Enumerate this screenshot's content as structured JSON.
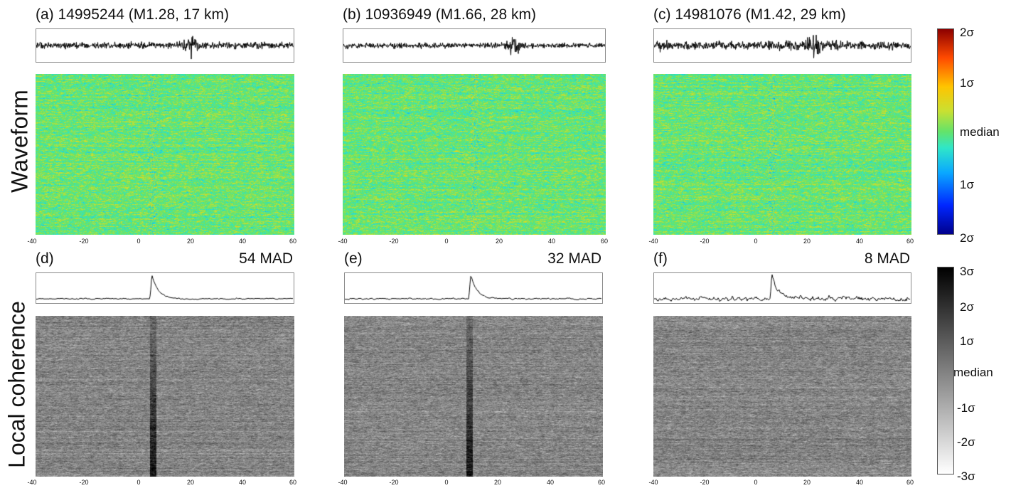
{
  "row_labels": [
    "Waveform",
    "Local coherence"
  ],
  "panels": [
    {
      "id": "a",
      "title": "(a) 14995244 (M1.28, 17 km)",
      "kind": "waveform",
      "event_time": 5
    },
    {
      "id": "b",
      "title": "(b) 10936949 (M1.66, 28 km)",
      "kind": "waveform",
      "event_time": 25
    },
    {
      "id": "c",
      "title": "(c) 14981076 (M1.42, 29 km)",
      "kind": "waveform",
      "event_time": 6
    },
    {
      "id": "d",
      "title": "(d)",
      "mad": "54 MAD",
      "kind": "coherence",
      "event_time": 5
    },
    {
      "id": "e",
      "title": "(e)",
      "mad": "32 MAD",
      "kind": "coherence",
      "event_time": 9
    },
    {
      "id": "f",
      "title": "(f)",
      "mad": "8 MAD",
      "kind": "coherence",
      "event_time": 6
    }
  ],
  "x_ticks": [
    "-40",
    "-20",
    "0",
    "20",
    "40",
    "60"
  ],
  "colorbar_waveform": [
    "2σ",
    "1σ",
    "median",
    "1σ",
    "2σ"
  ],
  "colorbar_coherence": [
    "3σ",
    "2σ",
    "1σ",
    "median",
    "-1σ",
    "-2σ",
    "-3σ"
  ],
  "chart_data": [
    {
      "type": "heatmap",
      "panel": "a",
      "title": "(a) 14995244 (M1.28, 17 km)",
      "xlim": [
        -40,
        60
      ],
      "x_ticks": [
        -40,
        -20,
        0,
        20,
        40,
        60
      ],
      "colormap": "jet",
      "colorbar": "waveform",
      "trace_peak_x": 20
    },
    {
      "type": "heatmap",
      "panel": "b",
      "title": "(b) 10936949 (M1.66, 28 km)",
      "xlim": [
        -40,
        60
      ],
      "x_ticks": [
        -40,
        -20,
        0,
        20,
        40,
        60
      ],
      "colormap": "jet",
      "colorbar": "waveform",
      "trace_peak_x": 25
    },
    {
      "type": "heatmap",
      "panel": "c",
      "title": "(c) 14981076 (M1.42, 29 km)",
      "xlim": [
        -40,
        60
      ],
      "x_ticks": [
        -40,
        -20,
        0,
        20,
        40,
        60
      ],
      "colormap": "jet",
      "colorbar": "waveform",
      "trace_peak_x": 22
    },
    {
      "type": "heatmap",
      "panel": "d",
      "title": "(d)",
      "annotation": "54 MAD",
      "xlim": [
        -40,
        60
      ],
      "x_ticks": [
        -40,
        -20,
        0,
        20,
        40,
        60
      ],
      "colormap": "gray",
      "colorbar": "coherence",
      "trace_peak_x": 5
    },
    {
      "type": "heatmap",
      "panel": "e",
      "title": "(e)",
      "annotation": "32 MAD",
      "xlim": [
        -40,
        60
      ],
      "x_ticks": [
        -40,
        -20,
        0,
        20,
        40,
        60
      ],
      "colormap": "gray",
      "colorbar": "coherence",
      "trace_peak_x": 9
    },
    {
      "type": "heatmap",
      "panel": "f",
      "title": "(f)",
      "annotation": "8 MAD",
      "xlim": [
        -40,
        60
      ],
      "x_ticks": [
        -40,
        -20,
        0,
        20,
        40,
        60
      ],
      "colormap": "gray",
      "colorbar": "coherence",
      "trace_peak_x": 6
    }
  ]
}
